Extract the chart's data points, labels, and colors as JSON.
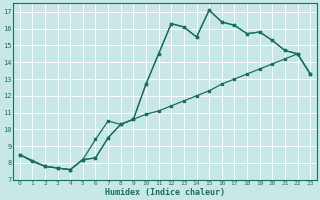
{
  "xlabel": "Humidex (Indice chaleur)",
  "bg_color": "#c8e8e8",
  "grid_color": "#ffffff",
  "line_color": "#1a6e60",
  "xlim": [
    -0.5,
    23.5
  ],
  "ylim": [
    7,
    17.5
  ],
  "xticks": [
    0,
    1,
    2,
    3,
    4,
    5,
    6,
    7,
    8,
    9,
    10,
    11,
    12,
    13,
    14,
    15,
    16,
    17,
    18,
    19,
    20,
    21,
    22,
    23
  ],
  "yticks": [
    7,
    8,
    9,
    10,
    11,
    12,
    13,
    14,
    15,
    16,
    17
  ],
  "line1_x": [
    0,
    1,
    2,
    3,
    4,
    5,
    6,
    7,
    8,
    9,
    10,
    11,
    12,
    13,
    14,
    15,
    16,
    17,
    18,
    19,
    20,
    21,
    22,
    23
  ],
  "line1_y": [
    8.5,
    8.1,
    7.8,
    7.7,
    7.6,
    8.2,
    8.3,
    9.5,
    10.3,
    10.6,
    10.9,
    11.1,
    11.4,
    11.7,
    12.0,
    12.3,
    12.7,
    13.0,
    13.3,
    13.6,
    13.9,
    14.2,
    14.5,
    13.3
  ],
  "line2_x": [
    0,
    1,
    2,
    3,
    4,
    5,
    6,
    7,
    8,
    9,
    10,
    11,
    12,
    13,
    14,
    15,
    16,
    17,
    18,
    19,
    20,
    21,
    22,
    23
  ],
  "line2_y": [
    8.5,
    8.1,
    7.8,
    7.7,
    7.6,
    8.2,
    8.3,
    9.5,
    10.3,
    10.6,
    12.7,
    14.5,
    16.3,
    16.1,
    15.5,
    17.1,
    16.4,
    16.2,
    15.7,
    15.8,
    15.3,
    14.7,
    14.5,
    13.3
  ],
  "line3_x": [
    0,
    2,
    3,
    4,
    5,
    6,
    7,
    8,
    9,
    10,
    11,
    12,
    13,
    14,
    15,
    16,
    17,
    18,
    19,
    20,
    21,
    22,
    23
  ],
  "line3_y": [
    8.5,
    7.8,
    7.7,
    7.6,
    8.2,
    9.4,
    10.5,
    10.3,
    10.6,
    12.7,
    14.5,
    16.3,
    16.1,
    15.5,
    17.1,
    16.4,
    16.2,
    15.7,
    15.8,
    15.3,
    14.7,
    14.5,
    13.3
  ]
}
